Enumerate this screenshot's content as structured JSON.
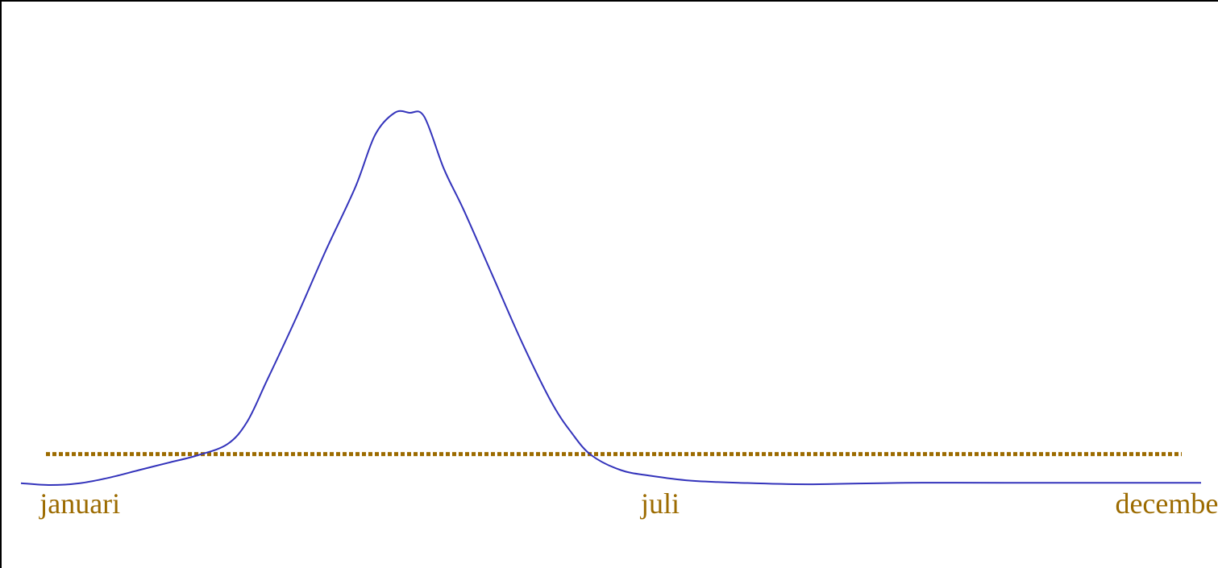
{
  "chart_data": {
    "type": "line",
    "title": "",
    "xlabel": "",
    "ylabel": "",
    "tick_labels": [
      {
        "text": "januari",
        "month": 0.6
      },
      {
        "text": "juli",
        "month": 6.5
      },
      {
        "text": "december",
        "month": 11.7
      }
    ],
    "xlim": [
      0,
      12
    ],
    "ylim": [
      0,
      100
    ],
    "grid": false,
    "series": [
      {
        "color": "#3333bb",
        "x": [
          0,
          0.3,
          0.6,
          0.9,
          1.2,
          1.5,
          1.8,
          2.1,
          2.3,
          2.5,
          2.8,
          3.1,
          3.4,
          3.6,
          3.8,
          3.95,
          4.1,
          4.3,
          4.5,
          4.8,
          5.1,
          5.4,
          5.6,
          5.8,
          6.1,
          6.4,
          6.8,
          7.3,
          8.0,
          9.0,
          10.0,
          11.0,
          12.0
        ],
        "y": [
          0.5,
          0,
          0.5,
          2,
          4,
          6,
          8,
          11,
          17,
          28,
          45,
          63,
          80,
          94,
          100,
          100,
          99,
          85,
          74,
          56,
          38,
          22,
          14,
          8,
          4,
          2.5,
          1.2,
          0.6,
          0.2,
          0.6,
          0.6,
          0.6,
          0.6
        ]
      }
    ],
    "reference_line": {
      "value": 8.3,
      "color": "#9c6b00",
      "style": "dotted"
    },
    "label_color": "#9c6b00"
  }
}
